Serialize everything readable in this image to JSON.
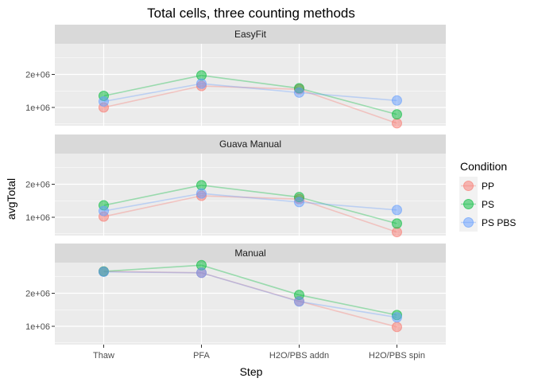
{
  "chart_data": {
    "type": "line",
    "title": "Total cells, three counting methods",
    "xlabel": "Step",
    "ylabel": "avgTotal",
    "categories": [
      "Thaw",
      "PFA",
      "H2O/PBS addn",
      "H2O/PBS spin"
    ],
    "yticks": [
      1000000,
      2000000
    ],
    "ytick_labels": [
      "1e+06",
      "2e+06"
    ],
    "ylim": [
      500000,
      3000000
    ],
    "grid": true,
    "legend": {
      "title": "Condition",
      "position": "right",
      "entries": [
        "PP",
        "PS",
        "PS PBS"
      ]
    },
    "colors": {
      "PP": "#F8766D",
      "PS": "#00BA38",
      "PS PBS": "#619CFF",
      "panel_bg": "#EBEBEB",
      "strip_bg": "#D9D9D9",
      "grid": "#FFFFFF"
    },
    "panels": [
      {
        "name": "EasyFit",
        "series": [
          {
            "name": "PP",
            "values": [
              1000000,
              1650000,
              1550000,
              520000
            ]
          },
          {
            "name": "PS",
            "values": [
              1350000,
              1970000,
              1580000,
              790000
            ]
          },
          {
            "name": "PS PBS",
            "values": [
              1180000,
              1720000,
              1450000,
              1210000
            ]
          }
        ]
      },
      {
        "name": "Guava Manual",
        "series": [
          {
            "name": "PP",
            "values": [
              1020000,
              1650000,
              1550000,
              550000
            ]
          },
          {
            "name": "PS",
            "values": [
              1360000,
              1970000,
              1610000,
              810000
            ]
          },
          {
            "name": "PS PBS",
            "values": [
              1190000,
              1720000,
              1460000,
              1220000
            ]
          }
        ]
      },
      {
        "name": "Manual",
        "series": [
          {
            "name": "PP",
            "values": [
              2660000,
              2620000,
              1760000,
              980000
            ]
          },
          {
            "name": "PS",
            "values": [
              2660000,
              2850000,
              1950000,
              1340000
            ]
          },
          {
            "name": "PS PBS",
            "values": [
              2650000,
              2620000,
              1750000,
              1270000
            ]
          }
        ]
      }
    ]
  }
}
